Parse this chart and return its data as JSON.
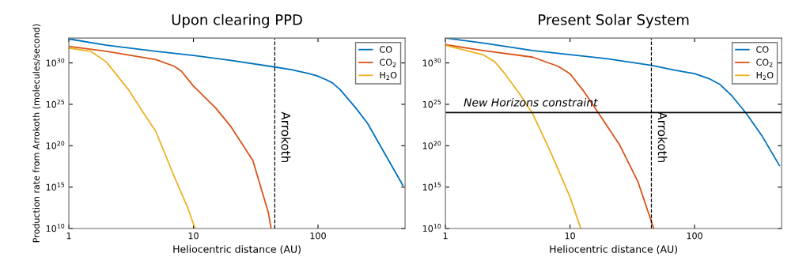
{
  "chart_data": [
    {
      "type": "line",
      "title": "Upon clearing PPD",
      "xlabel": "Heliocentric distance (AU)",
      "ylabel": "Production rate from Arrokoth (molecules/second)",
      "log": "xy",
      "grid": false,
      "legend": "top right",
      "marker": "none",
      "line_style": "solid",
      "xlim": [
        1,
        500
      ],
      "xticks": [
        1,
        10,
        100
      ],
      "ylim": [
        10000000000.0,
        1e+33
      ],
      "yticks": [
        {
          "value": 10000000000.0,
          "label": "10$^{10}$"
        },
        {
          "value": 1000000000000000.0,
          "label": "10$^{15}$"
        },
        {
          "value": 1e+20,
          "label": "10$^{20}$"
        },
        {
          "value": 1e+25,
          "label": "10$^{25}$"
        },
        {
          "value": 1e+30,
          "label": "10$^{30}$"
        }
      ],
      "series": [
        {
          "name": "CO",
          "color": "#0072bd",
          "x": [
            1,
            2,
            5,
            10,
            20,
            45,
            60,
            85,
            100,
            115,
            130,
            150,
            200,
            250,
            300,
            400,
            480
          ],
          "values": [
            7.9e+32,
            1.4e+32,
            2.5e+31,
            7.9e+30,
            2e+30,
            3.2e+29,
            1.6e+29,
            5e+28,
            2.5e+28,
            1e+28,
            4e+27,
            6.3e+26,
            4e+24,
            5e+22,
            4e+20,
            2e+17,
            1600000000000000.0
          ]
        },
        {
          "name": "CO$_{2}$",
          "color": "#d95319",
          "x": [
            1,
            2,
            5,
            7,
            8,
            10,
            15,
            20,
            30,
            40,
            42
          ],
          "values": [
            1e+32,
            2.5e+31,
            2.5e+30,
            4e+29,
            1e+29,
            1.6e+27,
            4e+24,
            2e+22,
            1.6e+18,
            790000000000.0,
            10000000000.0
          ]
        },
        {
          "name": "H$_{2}$O",
          "color": "#edb120",
          "x": [
            1,
            1.5,
            2,
            3,
            4,
            5,
            7,
            9,
            10.3
          ],
          "values": [
            6.3e+31,
            2.5e+31,
            1.3e+30,
            6.3e+26,
            7.9e+23,
            5e+21,
            2e+16,
            3200000000000.0,
            10000000000.0
          ]
        }
      ],
      "ref_lines": [
        {
          "axis": "x",
          "value": 45,
          "label": "Arrokoth",
          "color": "#000000",
          "line_style": "dashed"
        }
      ]
    },
    {
      "type": "line",
      "title": "Present Solar System",
      "xlabel": "Heliocentric distance (AU)",
      "log": "xy",
      "grid": false,
      "legend": "top right",
      "marker": "none",
      "line_style": "solid",
      "xlim": [
        1,
        500
      ],
      "xticks": [
        1,
        10,
        100
      ],
      "ylim": [
        10000000000.0,
        1e+33
      ],
      "yticks": [
        {
          "value": 10000000000.0,
          "label": "10$^{10}$"
        },
        {
          "value": 1000000000000000.0,
          "label": "10$^{15}$"
        },
        {
          "value": 1e+20,
          "label": "10$^{20}$"
        },
        {
          "value": 1e+25,
          "label": "10$^{25}$"
        },
        {
          "value": 1e+30,
          "label": "10$^{30}$"
        }
      ],
      "series": [
        {
          "name": "CO",
          "color": "#0072bd",
          "x": [
            1,
            2,
            5,
            10,
            20,
            45,
            70,
            100,
            130,
            160,
            200,
            260,
            350,
            480
          ],
          "values": [
            1e+33,
            2.5e+32,
            3.2e+31,
            1e+31,
            3.2e+30,
            5e+29,
            1.3e+29,
            5e+28,
            1.3e+28,
            2.5e+27,
            1e+26,
            7.9e+23,
            1.3e+21,
            4e+17
          ]
        },
        {
          "name": "CO$_{2}$",
          "color": "#d95319",
          "x": [
            1,
            2,
            5,
            8,
            10,
            13,
            17,
            25,
            35,
            47
          ],
          "values": [
            1.6e+32,
            3.2e+31,
            5e+30,
            4e+29,
            5e+28,
            3.2e+26,
            7.9e+23,
            1.3e+20,
            5000000000000000.0,
            10000000000.0
          ]
        },
        {
          "name": "H$_{2}$O",
          "color": "#edb120",
          "x": [
            1,
            2,
            2.5,
            3,
            4,
            5,
            7,
            10,
            12.2
          ],
          "values": [
            1.3e+32,
            1e+31,
            1.3e+30,
            5e+28,
            1.3e+26,
            7.9e+23,
            1.6e+19,
            63000000000000.0,
            10000000000.0
          ]
        }
      ],
      "ref_lines": [
        {
          "axis": "x",
          "value": 45,
          "label": "Arrokoth",
          "color": "#000000",
          "line_style": "dashed"
        },
        {
          "axis": "y",
          "value": 1e+24,
          "label": "New Horizons constraint",
          "color": "#000000",
          "line_style": "solid"
        }
      ]
    }
  ]
}
